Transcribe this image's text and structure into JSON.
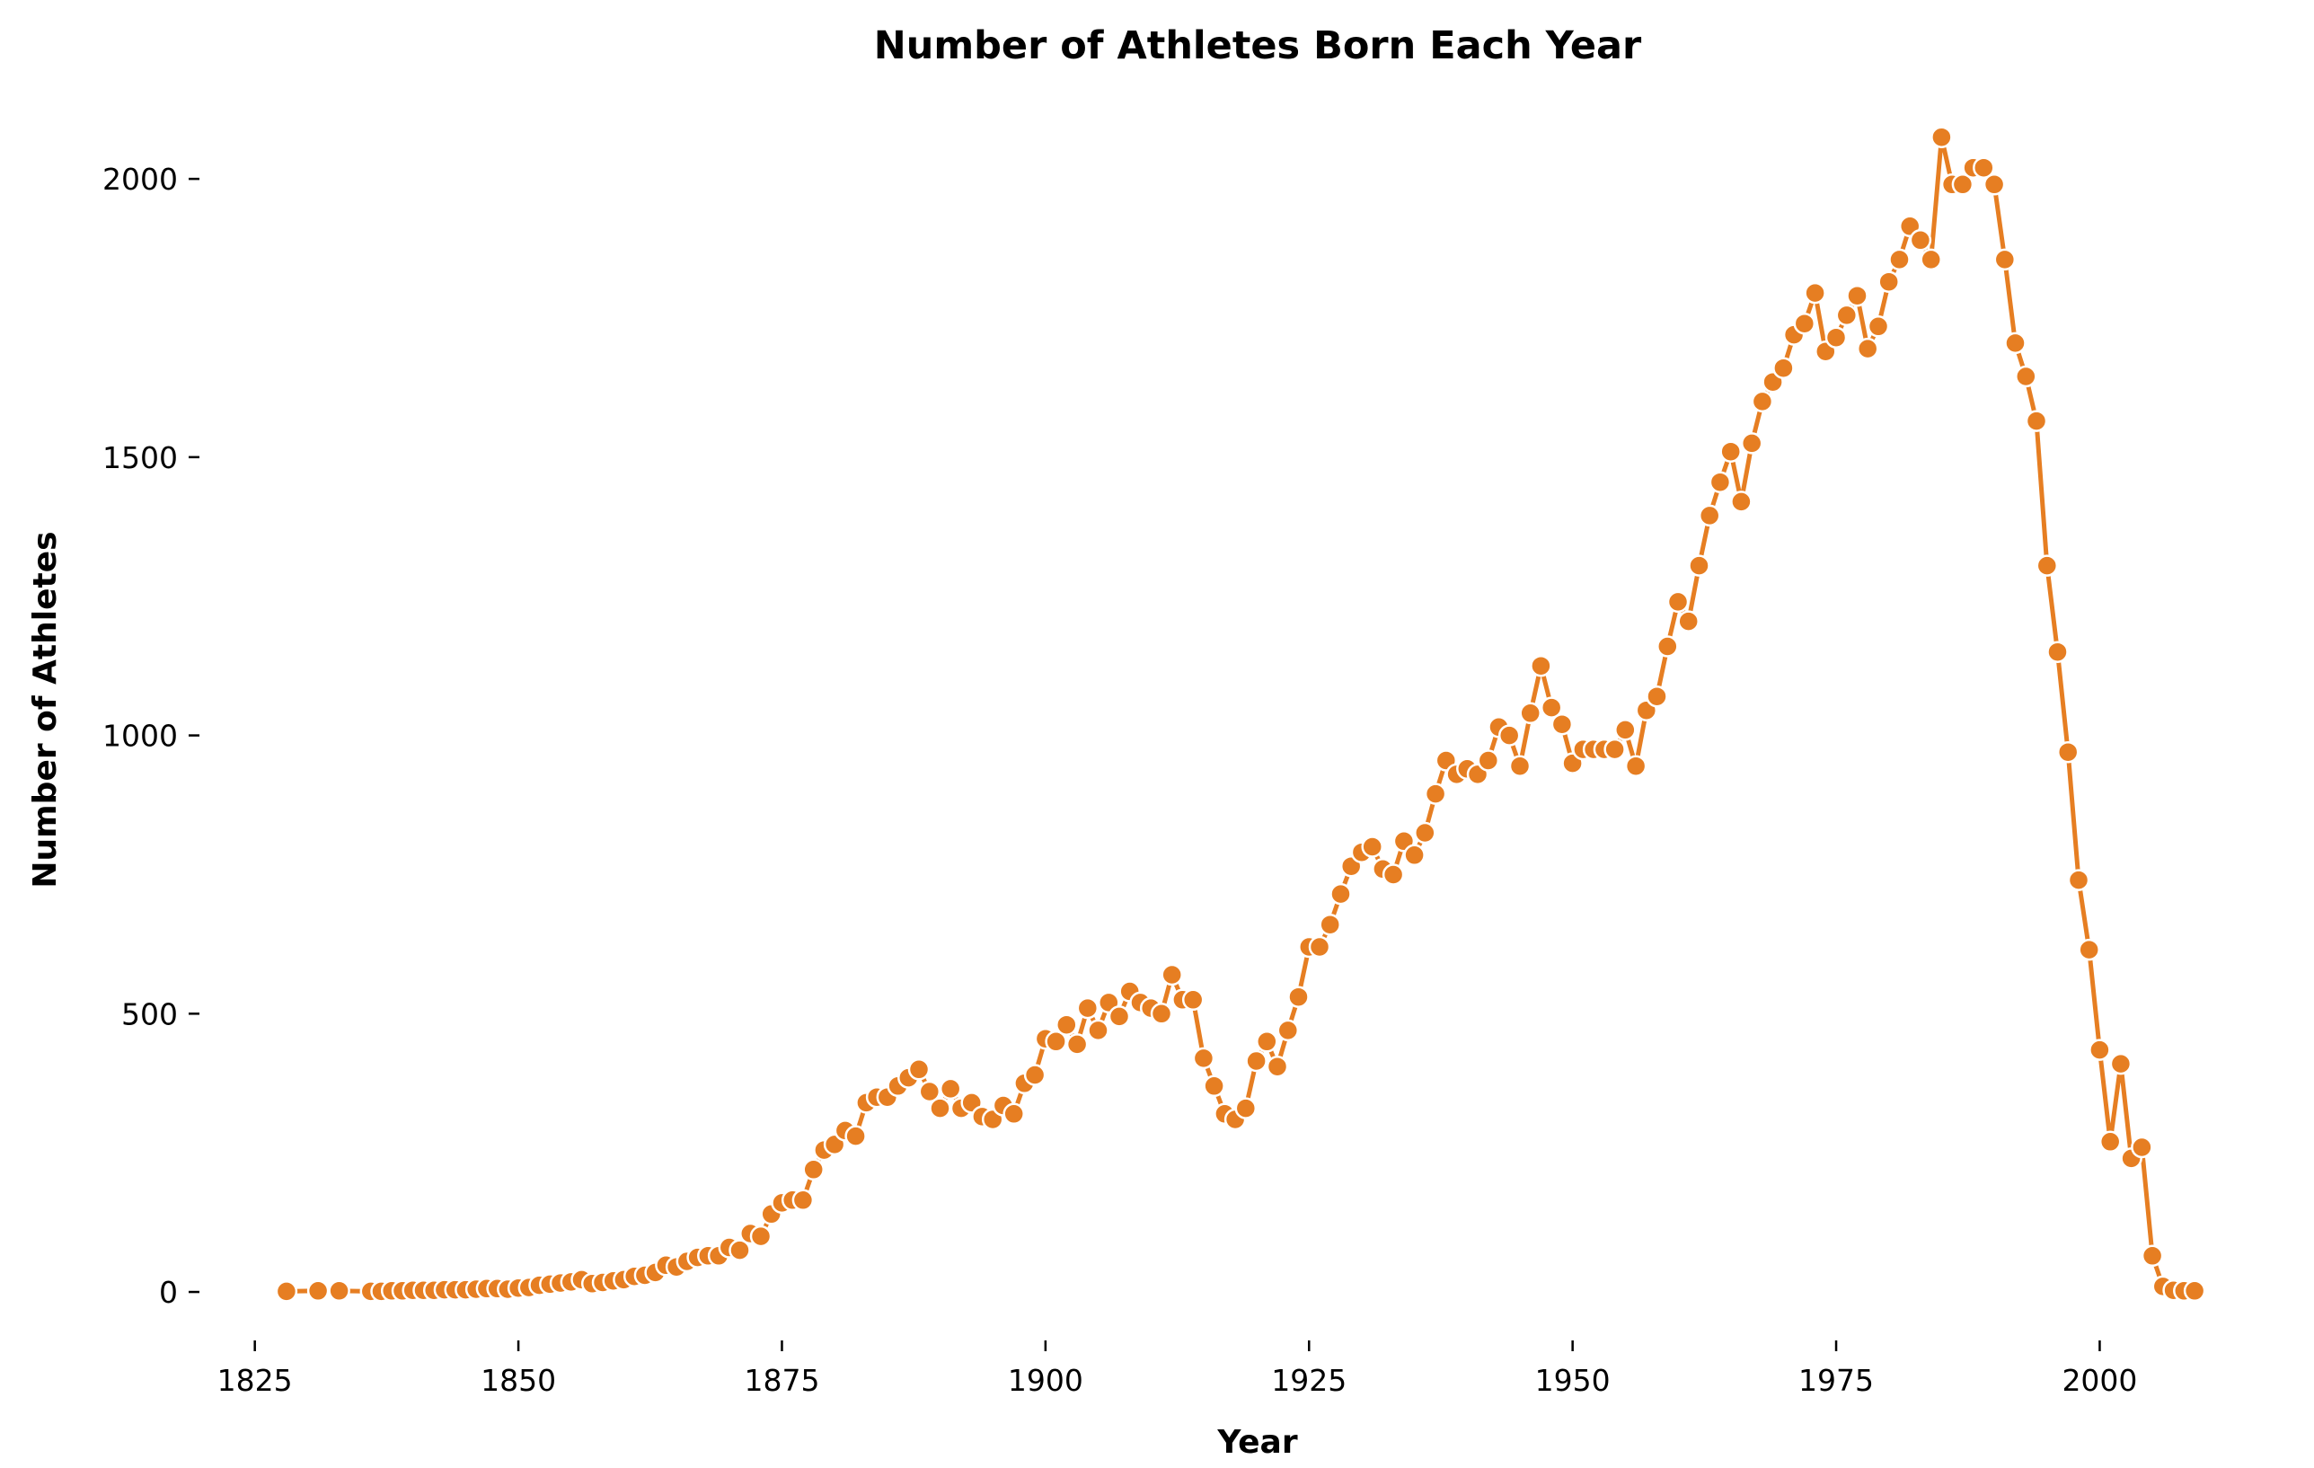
{
  "chart_data": {
    "type": "line",
    "title": "Number of Athletes Born Each Year",
    "xlabel": "Year",
    "ylabel": "Number of Athletes",
    "xlim": [
      1820,
      2013
    ],
    "ylim": [
      -100,
      2160
    ],
    "xticks": [
      1825,
      1850,
      1875,
      1900,
      1925,
      1950,
      1975,
      2000
    ],
    "yticks": [
      0,
      500,
      1000,
      1500,
      2000
    ],
    "grid": false,
    "legend": "none",
    "color": "#e67e22",
    "series": [
      {
        "x": [
          1828,
          1831,
          1833,
          1836,
          1837,
          1838,
          1839,
          1840,
          1841,
          1842,
          1843,
          1844,
          1845,
          1846,
          1847,
          1848,
          1849,
          1850,
          1851,
          1852,
          1853,
          1854,
          1855,
          1856,
          1857,
          1858,
          1859,
          1860,
          1861,
          1862,
          1863,
          1864,
          1865,
          1866,
          1867,
          1868,
          1869,
          1870,
          1871,
          1872,
          1873,
          1874,
          1875,
          1876,
          1877,
          1878,
          1879,
          1880,
          1881,
          1882,
          1883,
          1884,
          1885,
          1886,
          1887,
          1888,
          1889,
          1890,
          1891,
          1892,
          1893,
          1894,
          1895,
          1896,
          1897,
          1898,
          1899,
          1900,
          1901,
          1902,
          1903,
          1904,
          1905,
          1906,
          1907,
          1908,
          1909,
          1910,
          1911,
          1912,
          1913,
          1914,
          1915,
          1916,
          1917,
          1918,
          1919,
          1920,
          1921,
          1922,
          1923,
          1924,
          1925,
          1926,
          1927,
          1928,
          1929,
          1930,
          1931,
          1932,
          1933,
          1934,
          1935,
          1936,
          1937,
          1938,
          1939,
          1940,
          1941,
          1942,
          1943,
          1944,
          1945,
          1946,
          1947,
          1948,
          1949,
          1950,
          1951,
          1952,
          1953,
          1954,
          1955,
          1956,
          1957,
          1958,
          1959,
          1960,
          1961,
          1962,
          1963,
          1964,
          1965,
          1966,
          1967,
          1968,
          1969,
          1970,
          1971,
          1972,
          1973,
          1974,
          1975,
          1976,
          1977,
          1978,
          1979,
          1980,
          1981,
          1982,
          1983,
          1984,
          1985,
          1986,
          1987,
          1988,
          1989,
          1990,
          1991,
          1992,
          1993,
          1994,
          1995,
          1996,
          1997,
          1998,
          1999,
          2000,
          2001,
          2002,
          2003,
          2004,
          2005,
          2006,
          2007,
          2008,
          2009
        ],
        "y": [
          1,
          2,
          2,
          1,
          1,
          2,
          2,
          3,
          3,
          3,
          4,
          4,
          4,
          5,
          6,
          6,
          5,
          7,
          8,
          12,
          14,
          16,
          18,
          22,
          15,
          17,
          20,
          22,
          28,
          30,
          35,
          48,
          45,
          55,
          62,
          65,
          65,
          80,
          75,
          105,
          100,
          140,
          160,
          165,
          165,
          220,
          255,
          265,
          290,
          280,
          340,
          350,
          350,
          370,
          385,
          400,
          360,
          330,
          365,
          330,
          340,
          315,
          310,
          335,
          320,
          375,
          390,
          455,
          450,
          480,
          445,
          510,
          470,
          520,
          495,
          540,
          520,
          510,
          500,
          570,
          525,
          525,
          420,
          370,
          320,
          310,
          330,
          415,
          450,
          405,
          470,
          530,
          620,
          620,
          660,
          715,
          765,
          790,
          800,
          760,
          750,
          810,
          785,
          825,
          895,
          955,
          930,
          940,
          930,
          955,
          1015,
          1000,
          945,
          1040,
          1125,
          1050,
          1020,
          950,
          975,
          975,
          975,
          975,
          1010,
          945,
          1045,
          1070,
          1160,
          1240,
          1205,
          1305,
          1395,
          1455,
          1510,
          1420,
          1525,
          1600,
          1635,
          1660,
          1720,
          1740,
          1795,
          1690,
          1715,
          1755,
          1790,
          1695,
          1735,
          1815,
          1855,
          1915,
          1890,
          1855,
          2075,
          1990,
          1990,
          2020,
          2020,
          1990,
          1855,
          1705,
          1645,
          1565,
          1305,
          1150,
          970,
          740,
          615,
          435,
          270,
          410,
          240,
          260,
          65,
          10,
          3,
          2,
          2
        ]
      }
    ]
  }
}
